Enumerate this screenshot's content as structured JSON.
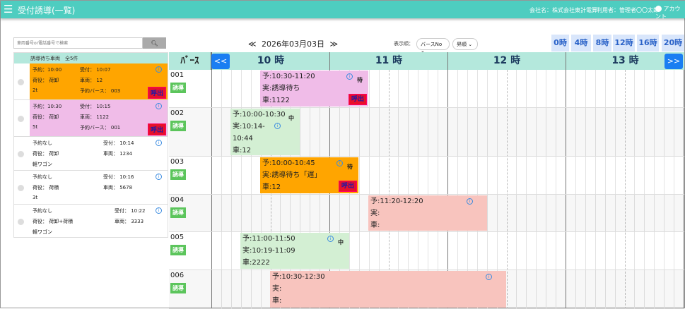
{
  "header": {
    "title": "受付誘導(一覧)",
    "company": "会社名：株式会社東計電算",
    "user": "利用者：管理者〇〇太郎",
    "account": "アカウント",
    "menu_icon": "hamburger-icon"
  },
  "search": {
    "placeholder": "車両番号or電話番号で検索",
    "button_icon": "search-icon"
  },
  "date_nav": {
    "prev": "≪",
    "date": "2026年03月03日",
    "next": "≫"
  },
  "sort": {
    "label": "表示順：",
    "field": "バースNo",
    "order": "昇順"
  },
  "hour_buttons": [
    "0時",
    "4時",
    "8時",
    "12時",
    "16時",
    "20時"
  ],
  "waiting": {
    "title": "誘導待ち車両　全5件",
    "items": [
      {
        "reserve": "予約：10:00",
        "received": "受付： 10:07",
        "cargo": "荷役： 荷卸",
        "vehicle": "車両： 12",
        "size": "2t",
        "berth": "予約バース： 003",
        "call": "呼出",
        "color": "#ffa500"
      },
      {
        "reserve": "予約：10:30",
        "received": "受付： 10:15",
        "cargo": "荷役： 荷卸",
        "vehicle": "車両： 1122",
        "size": "5t",
        "berth": "予約バース： 001",
        "call": "呼出",
        "color": "#f0bce8"
      },
      {
        "reserve": "予約なし",
        "received": "受付： 10:14",
        "cargo": "荷役： 荷卸",
        "vehicle": "車両： 1234",
        "size": "軽ワゴン"
      },
      {
        "reserve": "予約なし",
        "received": "受付： 10:16",
        "cargo": "荷役： 荷積",
        "vehicle": "車両： 5678",
        "size": "3t"
      },
      {
        "reserve": "予約なし",
        "received": "受付： 10:22",
        "cargo": "荷役： 荷卸+荷積",
        "vehicle": "車両： 3333",
        "size": "軽ワゴン"
      }
    ]
  },
  "timeline": {
    "berth_header": "ﾊﾞｰｽ",
    "prev": "<<",
    "next": ">>",
    "hours": [
      "10 時",
      "11 時",
      "12 時",
      "13 時"
    ],
    "rows": [
      {
        "berth": "001",
        "tag": "誘導",
        "block": {
          "plan": "予:10:30-11:20",
          "actual": "実:誘導待ち",
          "car": "車:1122",
          "status": "待",
          "call": "呼出",
          "color": "#f0bce8"
        }
      },
      {
        "berth": "002",
        "tag": "誘導",
        "block": {
          "plan": "予:10:00-10:30",
          "actual": "実:10:14-",
          "actual2": "10:44",
          "car": "車:12",
          "status": "中",
          "color": "#d3efd3"
        }
      },
      {
        "berth": "003",
        "tag": "誘導",
        "block": {
          "plan": "予:10:00-10:45",
          "actual": "実:誘導待ち「遅」",
          "car": "車:12",
          "status": "待",
          "call": "呼出",
          "color": "#ffa500"
        }
      },
      {
        "berth": "004",
        "tag": "誘導",
        "block": {
          "plan": "予:11:20-12:20",
          "actual": "実:",
          "car": "車:",
          "color": "#f8c4be"
        }
      },
      {
        "berth": "005",
        "tag": "誘導",
        "block": {
          "plan": "予:11:00-11:50",
          "actual": "実:10:19-11:09",
          "car": "車:2222",
          "status": "中",
          "color": "#d3efd3"
        }
      },
      {
        "berth": "006",
        "tag": "誘導",
        "block": {
          "plan": "予:10:30-12:30",
          "actual": "実:",
          "car": "車:",
          "color": "#f8c4be"
        }
      }
    ]
  }
}
